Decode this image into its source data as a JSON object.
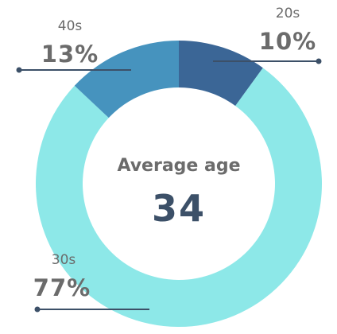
{
  "chart_data": {
    "type": "pie",
    "center_label": "Average age",
    "center_value": "34",
    "slices": [
      {
        "label": "20s",
        "value": 10,
        "value_label": "10%",
        "color": "#3b6696"
      },
      {
        "label": "30s",
        "value": 77,
        "value_label": "77%",
        "color": "#8de8e8"
      },
      {
        "label": "40s",
        "value": 13,
        "value_label": "13%",
        "color": "#4693be"
      }
    ],
    "leader_color": "#3c5068"
  }
}
